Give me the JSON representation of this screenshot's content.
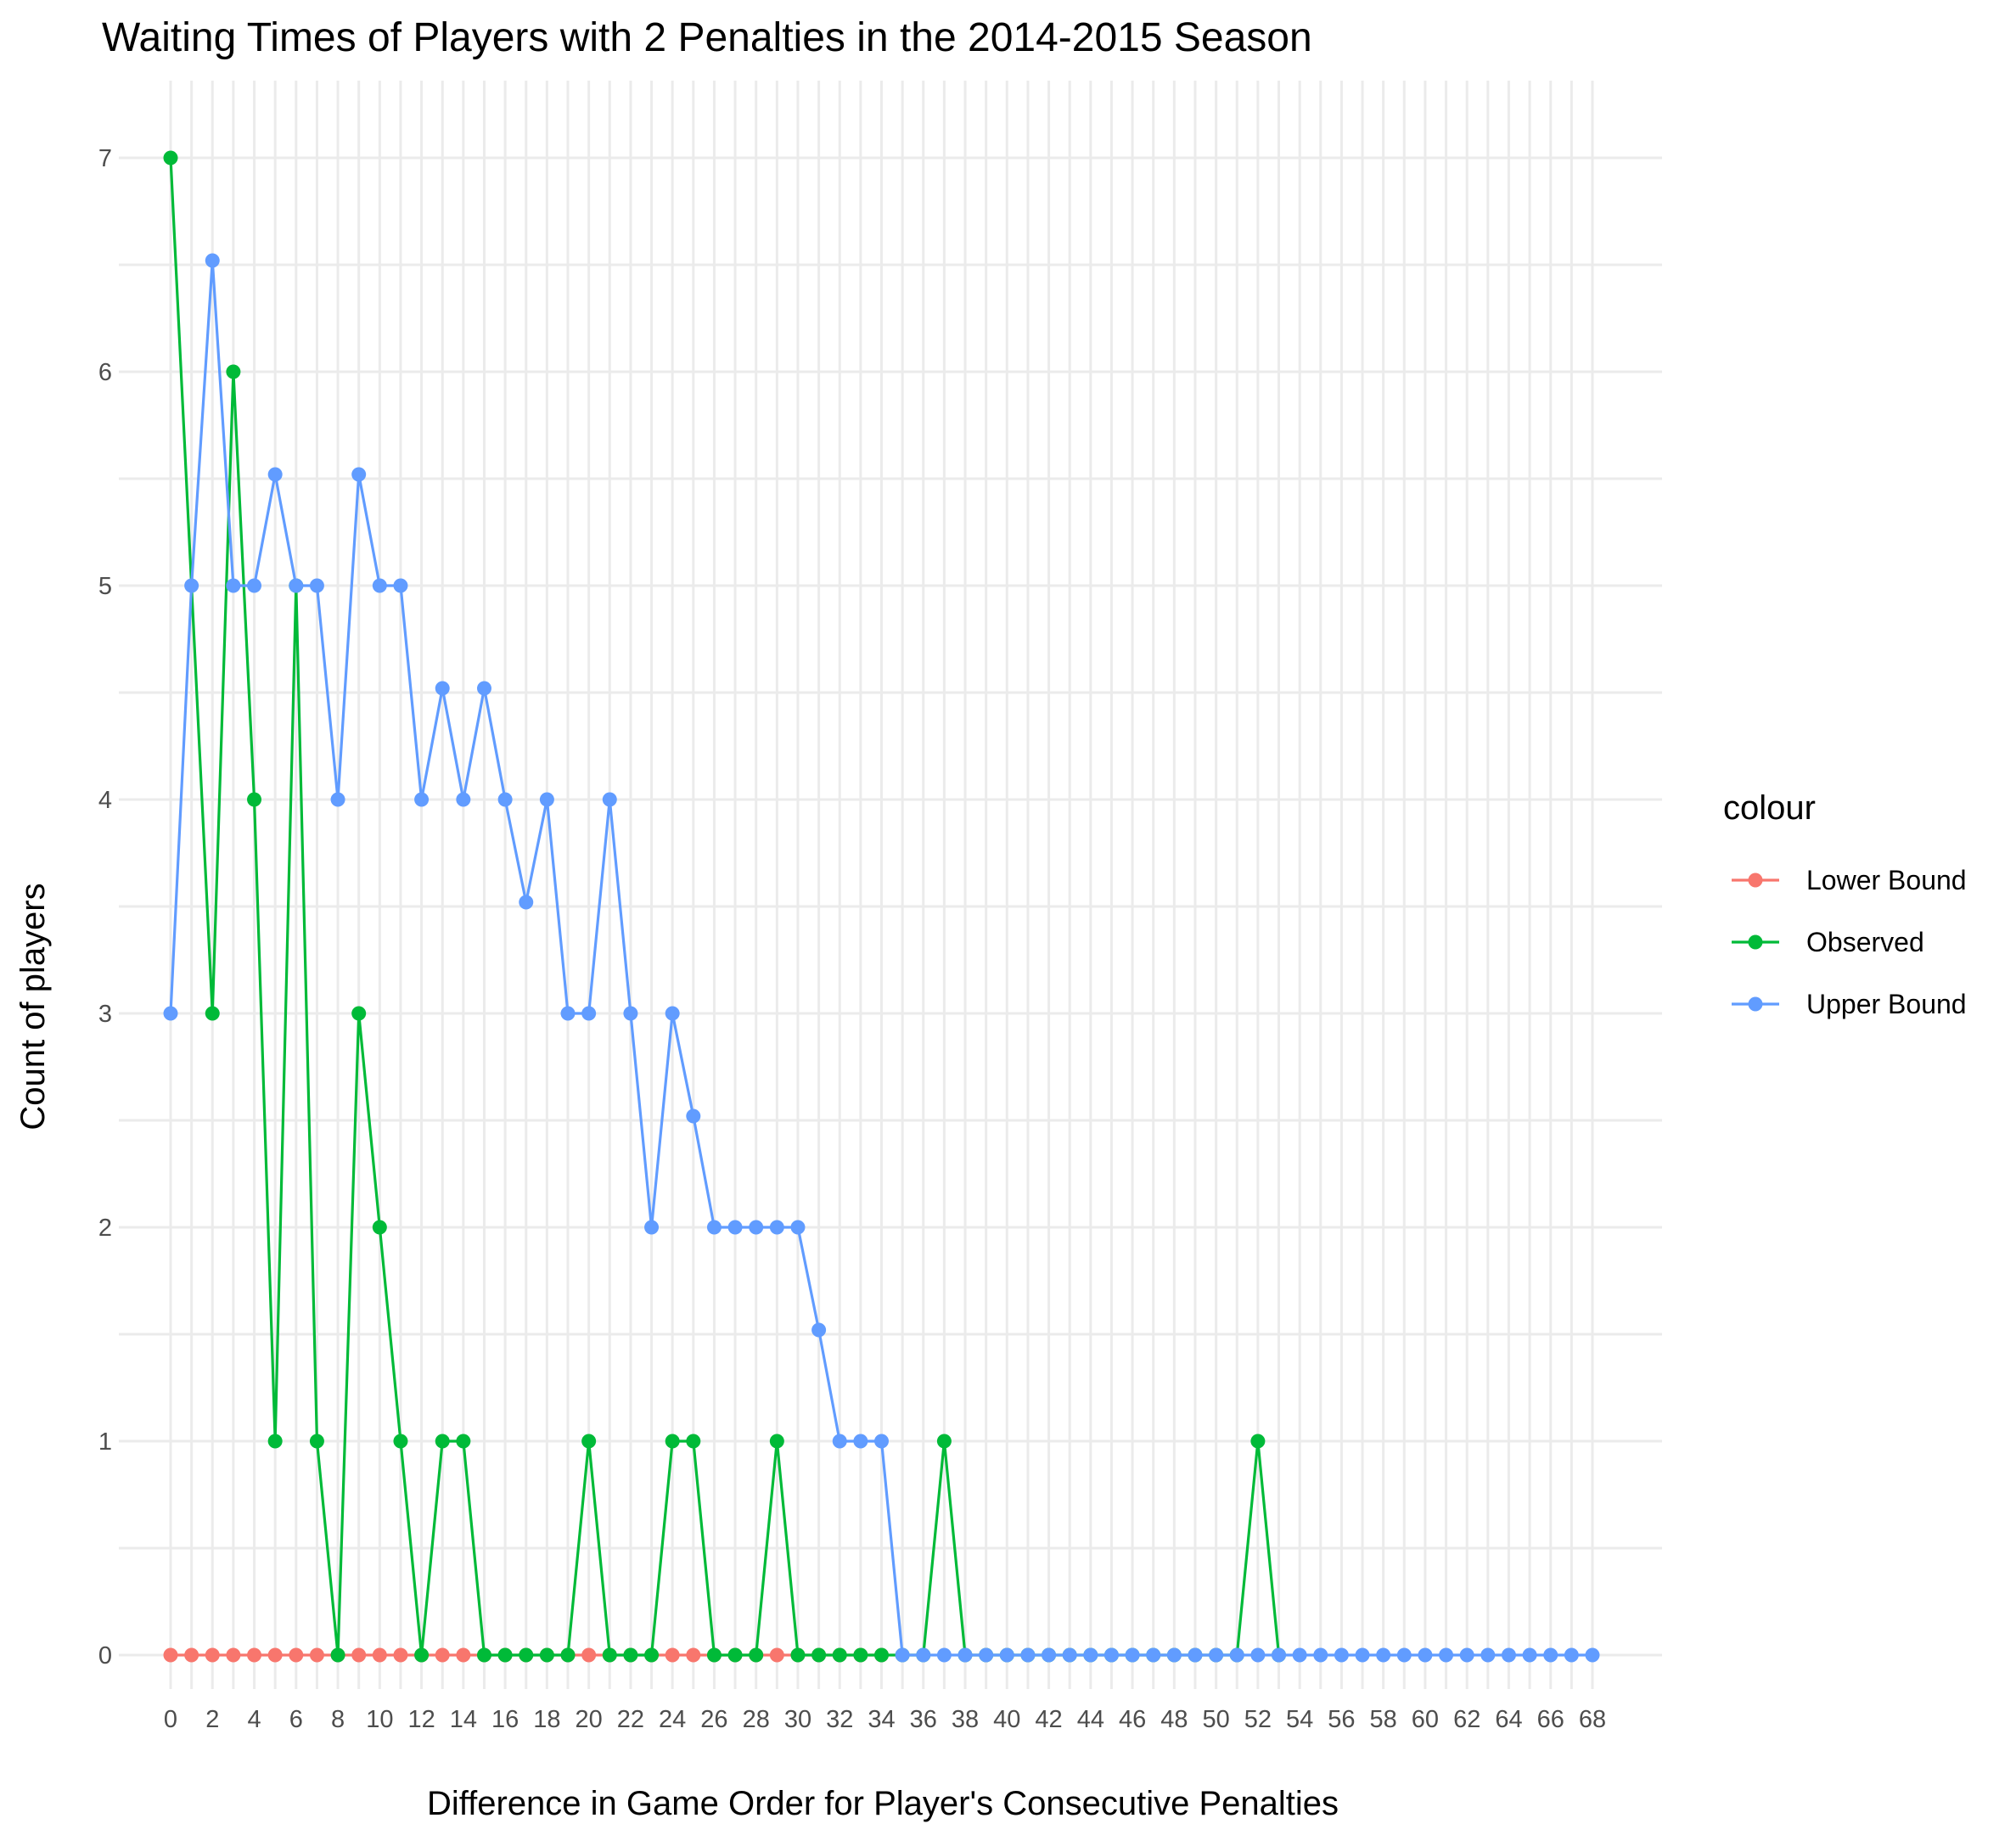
{
  "chart_data": {
    "type": "line",
    "title": "Waiting Times of Players with 2 Penalties in the 2014-2015 Season",
    "xlabel": "Difference in Game Order for Player's Consecutive Penalties",
    "ylabel": "Count of players",
    "xlim": [
      0,
      68
    ],
    "ylim": [
      0,
      7
    ],
    "x_ticks": [
      "0",
      "2",
      "4",
      "6",
      "8",
      "10",
      "12",
      "14",
      "16",
      "18",
      "20",
      "22",
      "24",
      "26",
      "28",
      "30",
      "32",
      "34",
      "36",
      "38",
      "40",
      "42",
      "44",
      "46",
      "48",
      "50",
      "52",
      "54",
      "56",
      "58",
      "60",
      "62",
      "64",
      "66",
      "68"
    ],
    "y_ticks": [
      "0",
      "1",
      "2",
      "3",
      "4",
      "5",
      "6",
      "7"
    ],
    "grid": true,
    "legend": {
      "title": "colour",
      "position": "right"
    },
    "series": [
      {
        "name": "Lower Bound",
        "color": "#F8766D",
        "x": [
          0,
          1,
          2,
          3,
          4,
          5,
          6,
          7,
          8,
          9,
          10,
          11,
          12,
          13,
          14,
          15,
          16,
          17,
          18,
          19,
          20,
          21,
          22,
          23,
          24,
          25,
          26,
          27,
          28,
          29,
          30,
          31,
          32,
          33,
          34
        ],
        "y": [
          0,
          0,
          0,
          0,
          0,
          0,
          0,
          0,
          0,
          0,
          0,
          0,
          0,
          0,
          0,
          0,
          0,
          0,
          0,
          0,
          0,
          0,
          0,
          0,
          0,
          0,
          0,
          0,
          0,
          0,
          0,
          0,
          0,
          0,
          0
        ]
      },
      {
        "name": "Observed",
        "color": "#00BA38",
        "x": [
          0,
          2,
          3,
          4,
          5,
          6,
          7,
          8,
          9,
          10,
          11,
          12,
          13,
          14,
          15,
          16,
          17,
          18,
          19,
          20,
          21,
          22,
          23,
          24,
          25,
          26,
          27,
          28,
          29,
          30,
          31,
          32,
          33,
          34,
          35,
          36,
          37,
          38,
          39,
          40,
          41,
          42,
          43,
          44,
          45,
          46,
          47,
          48,
          49,
          50,
          51,
          52,
          53
        ],
        "y": [
          7,
          3,
          6,
          4,
          1,
          5,
          1,
          0,
          3,
          2,
          1,
          0,
          1,
          1,
          0,
          0,
          0,
          0,
          0,
          1,
          0,
          0,
          0,
          1,
          1,
          0,
          0,
          0,
          1,
          0,
          0,
          0,
          0,
          0,
          0,
          0,
          1,
          0,
          0,
          0,
          0,
          0,
          0,
          0,
          0,
          0,
          0,
          0,
          0,
          0,
          0,
          1,
          0
        ]
      },
      {
        "name": "Upper Bound",
        "color": "#619CFF",
        "x": [
          0,
          1,
          2,
          3,
          4,
          5,
          6,
          7,
          8,
          9,
          10,
          11,
          12,
          13,
          14,
          15,
          16,
          17,
          18,
          19,
          20,
          21,
          22,
          23,
          24,
          25,
          26,
          27,
          28,
          29,
          30,
          31,
          32,
          33,
          34,
          35,
          36,
          37,
          38,
          39,
          40,
          41,
          42,
          43,
          44,
          45,
          46,
          47,
          48,
          49,
          50,
          51,
          52,
          53,
          54,
          55,
          56,
          57,
          58,
          59,
          60,
          61,
          62,
          63,
          64,
          65,
          66,
          67,
          68
        ],
        "y": [
          3,
          5,
          6.52,
          5,
          5,
          5.52,
          5,
          5,
          4,
          5.52,
          5,
          5,
          4,
          4.52,
          4,
          4.52,
          4,
          3.52,
          4,
          3,
          3,
          4,
          3,
          2,
          3,
          2.52,
          2,
          2,
          2,
          2,
          2,
          1.52,
          1,
          1,
          1,
          0,
          0,
          0,
          0,
          0,
          0,
          0,
          0,
          0,
          0,
          0,
          0,
          0,
          0,
          0,
          0,
          0,
          0,
          0,
          0,
          0,
          0,
          0,
          0,
          0,
          0,
          0,
          0,
          0,
          0,
          0,
          0,
          0,
          0
        ]
      }
    ]
  }
}
